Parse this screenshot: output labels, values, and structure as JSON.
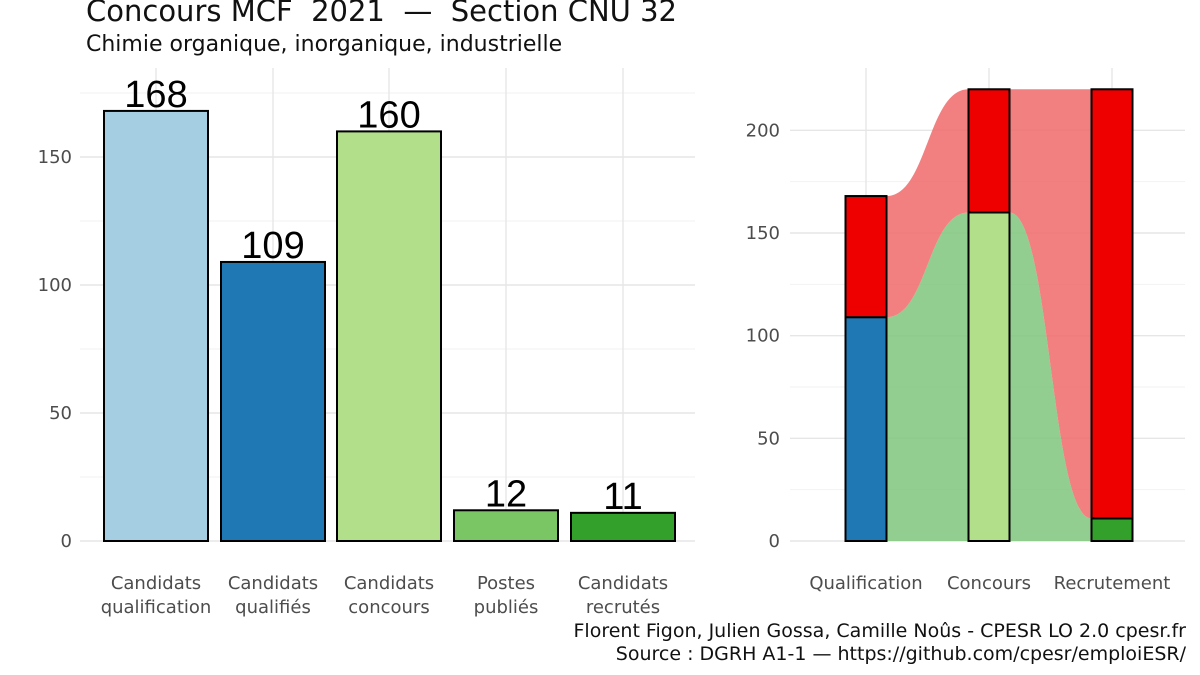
{
  "title": "Concours MCF  2021  —  Section CNU 32",
  "subtitle": "Chimie organique, inorganique, industrielle",
  "caption": {
    "line1": "Florent Figon, Julien Gossa, Camille Noûs - CPESR LO 2.0 cpesr.fr",
    "line2": "Source : DGRH A1-1 — https://github.com/cpesr/emploiESR/"
  },
  "chart_data": [
    {
      "type": "bar",
      "categories": [
        [
          "Candidats",
          "qualification"
        ],
        [
          "Candidats",
          "qualifiés"
        ],
        [
          "Candidats",
          "concours"
        ],
        [
          "Postes",
          "publiés"
        ],
        [
          "Candidats",
          "recrutés"
        ]
      ],
      "values": [
        168,
        109,
        160,
        12,
        11
      ],
      "colors": [
        "#a6cee3",
        "#1f78b4",
        "#b2df8a",
        "#7bc664",
        "#33a02c"
      ],
      "yticks": [
        0,
        50,
        100,
        150
      ],
      "ylim": [
        0,
        175
      ],
      "grid": true
    },
    {
      "type": "bar",
      "stacked": true,
      "categories": [
        "Qualification",
        "Concours",
        "Recrutement"
      ],
      "series": [
        {
          "values": [
            109,
            160,
            11
          ],
          "colors": [
            "#1f78b4",
            "#b2df8a",
            "#33a02c"
          ]
        },
        {
          "values": [
            59,
            60,
            209
          ],
          "color": "#ee0000"
        }
      ],
      "flows": {
        "lower_color": "#7fc67b",
        "upper_color": "#f06a6a"
      },
      "yticks": [
        0,
        50,
        100,
        150,
        200
      ],
      "ylim": [
        0,
        225
      ],
      "grid": true
    }
  ]
}
